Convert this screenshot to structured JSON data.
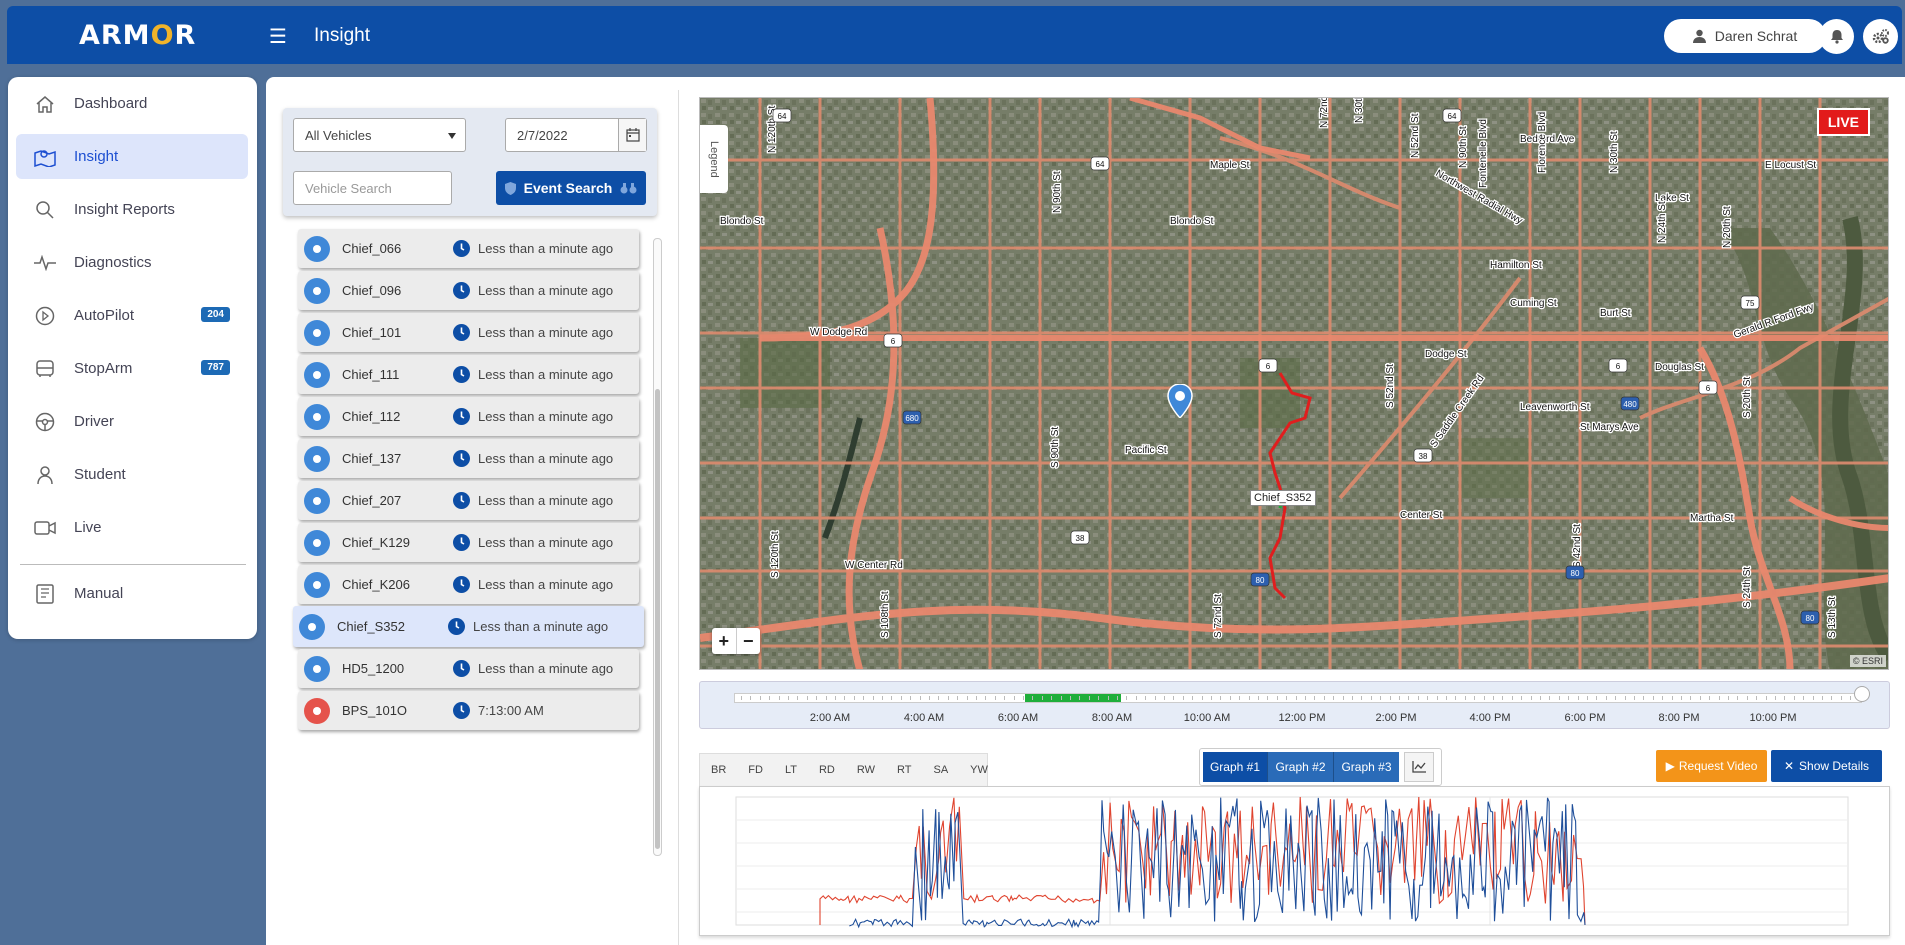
{
  "app": {
    "logo": "ARMOR",
    "logo_pre": "ARM",
    "logo_o": "O",
    "logo_post": "R",
    "page_title": "Insight"
  },
  "user": {
    "name": "Daren Schrat"
  },
  "sidebar": {
    "items": [
      {
        "label": "Dashboard",
        "icon": "home-icon"
      },
      {
        "label": "Insight",
        "icon": "map-icon",
        "active": true
      },
      {
        "label": "Insight Reports",
        "icon": "search-icon"
      },
      {
        "label": "Diagnostics",
        "icon": "pulse-icon"
      },
      {
        "label": "AutoPilot",
        "icon": "play-icon",
        "badge": "204"
      },
      {
        "label": "StopArm",
        "icon": "bus-icon",
        "badge": "787"
      },
      {
        "label": "Driver",
        "icon": "steering-wheel-icon"
      },
      {
        "label": "Student",
        "icon": "student-icon"
      },
      {
        "label": "Live",
        "icon": "video-camera-icon"
      },
      {
        "label": "Manual",
        "icon": "book-icon"
      }
    ]
  },
  "filters": {
    "vehicle_select": "All Vehicles",
    "date": "2/7/2022",
    "vehicle_search_placeholder": "Vehicle Search",
    "event_search_label": "Event Search"
  },
  "vehicles": [
    {
      "name": "Chief_066",
      "time": "Less than a minute ago",
      "status": "blue"
    },
    {
      "name": "Chief_096",
      "time": "Less than a minute ago",
      "status": "blue"
    },
    {
      "name": "Chief_101",
      "time": "Less than a minute ago",
      "status": "blue"
    },
    {
      "name": "Chief_111",
      "time": "Less than a minute ago",
      "status": "blue"
    },
    {
      "name": "Chief_112",
      "time": "Less than a minute ago",
      "status": "blue"
    },
    {
      "name": "Chief_137",
      "time": "Less than a minute ago",
      "status": "blue"
    },
    {
      "name": "Chief_207",
      "time": "Less than a minute ago",
      "status": "blue"
    },
    {
      "name": "Chief_K129",
      "time": "Less than a minute ago",
      "status": "blue"
    },
    {
      "name": "Chief_K206",
      "time": "Less than a minute ago",
      "status": "blue"
    },
    {
      "name": "Chief_S352",
      "time": "Less than a minute ago",
      "status": "blue",
      "selected": true
    },
    {
      "name": "HD5_1200",
      "time": "Less than a minute ago",
      "status": "blue"
    },
    {
      "name": "BPS_101O",
      "time": "7:13:00 AM",
      "status": "red"
    }
  ],
  "map": {
    "legend_label": "Legend",
    "live_label": "LIVE",
    "marker_label": "Chief_S352",
    "attribution": "© ESRI",
    "zoom_in": "+",
    "zoom_out": "−",
    "street_labels": [
      "Blondo St",
      "Blondo St",
      "W Dodge Rd",
      "Dodge St",
      "Pacific St",
      "Center St",
      "W Center Rd",
      "Maple St",
      "Hamilton St",
      "Cuming St",
      "Burt St",
      "Leavenworth St",
      "St Marys Ave",
      "Douglas St",
      "Martha St",
      "Lake St",
      "Bedford Ave",
      "E Locust St",
      "Northwest Radial Hwy",
      "Gerald R Ford Fwy",
      "N 120th St",
      "S 120th St",
      "N 90th St",
      "S 90th St",
      "S 72nd St",
      "S 108th St",
      "S 52nd St",
      "S Saddle Creek Rd",
      "S 42nd St",
      "S 24th St",
      "S 13th St",
      "N 30th St",
      "N 24th St",
      "N 20th St",
      "S 20th St",
      "N 30th St",
      "N 72nd St",
      "N 52nd St",
      "N 90th St",
      "Fontenelle Blvd",
      "Florence Blvd"
    ],
    "route_shields": [
      "64",
      "64",
      "64",
      "6",
      "6",
      "6",
      "6",
      "38",
      "38",
      "75",
      "80",
      "80",
      "80",
      "480",
      "680"
    ]
  },
  "timeline": {
    "labels": [
      "2:00 AM",
      "4:00 AM",
      "6:00 AM",
      "8:00 AM",
      "10:00 AM",
      "12:00 PM",
      "2:00 PM",
      "4:00 PM",
      "6:00 PM",
      "8:00 PM",
      "10:00 PM"
    ]
  },
  "graph": {
    "event_tabs": [
      "BR",
      "FD",
      "LT",
      "RD",
      "RW",
      "RT",
      "SA",
      "YW"
    ],
    "graph_buttons": [
      "Graph #1",
      "Graph #2",
      "Graph #3"
    ],
    "request_video": "Request Video",
    "show_details": "Show Details",
    "colors": {
      "series_a": "#1f4f9a",
      "series_b": "#e0442f"
    }
  }
}
